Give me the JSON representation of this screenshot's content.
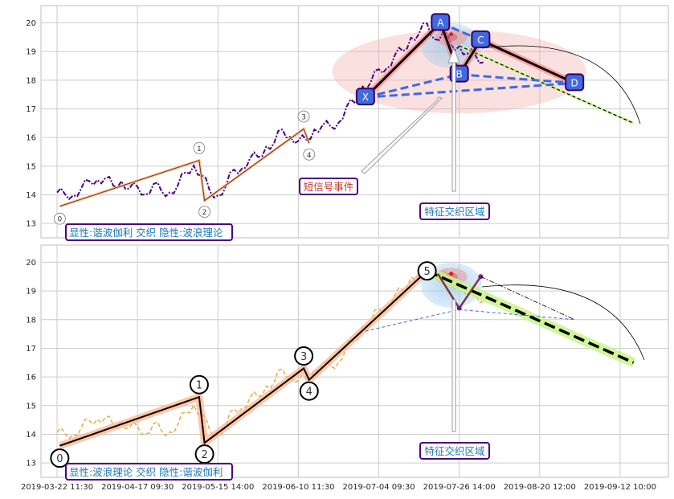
{
  "chart_data": [
    {
      "type": "line",
      "panel": "top",
      "yticks": [
        13,
        14,
        15,
        16,
        17,
        18,
        19,
        20
      ],
      "ylim": [
        12.5,
        20.6
      ],
      "grid": true,
      "series": [
        {
          "color": "#4b0082",
          "style": "dash-dot",
          "x": [
            0,
            3,
            6,
            9,
            12,
            15,
            18,
            21,
            24,
            27,
            30,
            33,
            36,
            39,
            42,
            45,
            48,
            51,
            54,
            57,
            60,
            63,
            66,
            69,
            72,
            75,
            78,
            81,
            84,
            87,
            90,
            93,
            96,
            99,
            102,
            105,
            108,
            111,
            114,
            117,
            120,
            123,
            126,
            129,
            132,
            135,
            138,
            141,
            144,
            147,
            150,
            153,
            156,
            159
          ],
          "y": [
            14.0,
            14.1,
            13.9,
            14.3,
            14.4,
            14.6,
            14.5,
            14.4,
            14.4,
            14.3,
            14.2,
            14.1,
            14.3,
            14.2,
            14.0,
            14.4,
            14.7,
            15.1,
            14.6,
            14.2,
            13.9,
            14.4,
            14.8,
            15.0,
            15.2,
            15.4,
            15.6,
            15.9,
            16.2,
            16.1,
            15.8,
            16.0,
            16.2,
            16.5,
            16.3,
            16.6,
            17.0,
            17.3,
            17.7,
            18.0,
            18.3,
            18.5,
            18.8,
            19.1,
            19.4,
            19.7,
            19.9,
            19.5,
            19.6,
            19.3,
            19.1,
            19.0,
            18.8,
            18.7
          ]
        }
      ],
      "patterns": [
        {
          "name": "elliott-wave",
          "color": "#ffb38a",
          "points": [
            {
              "x": 1,
              "y": 13.6,
              "label": "0"
            },
            {
              "x": 53,
              "y": 15.2,
              "label": "1"
            },
            {
              "x": 55,
              "y": 13.8,
              "label": "2"
            },
            {
              "x": 92,
              "y": 16.3,
              "label": "3"
            },
            {
              "x": 94,
              "y": 15.8,
              "label": "4"
            }
          ]
        },
        {
          "name": "harmonic",
          "color": "#4169e1",
          "points": [
            {
              "x": 115,
              "y": 17.4,
              "label": "X"
            },
            {
              "x": 143,
              "y": 20.0,
              "label": "A"
            },
            {
              "x": 150,
              "y": 18.2,
              "label": "B"
            },
            {
              "x": 158,
              "y": 19.4,
              "label": "C"
            },
            {
              "x": 193,
              "y": 17.9,
              "label": "D"
            }
          ]
        }
      ],
      "forecast": {
        "x": [
          150,
          215
        ],
        "y": [
          19.2,
          16.5
        ]
      },
      "annotations": [
        "短信号事件",
        "特征交织区域"
      ],
      "legend_text": "显性:谐波伽利 交织 隐性:波浪理论"
    },
    {
      "type": "line",
      "panel": "bottom",
      "yticks": [
        13,
        14,
        15,
        16,
        17,
        18,
        19,
        20
      ],
      "ylim": [
        12.5,
        20.6
      ],
      "grid": true,
      "series": [
        {
          "color": "#e8a830",
          "style": "dashed",
          "x": [
            0,
            3,
            6,
            9,
            12,
            15,
            18,
            21,
            24,
            27,
            30,
            33,
            36,
            39,
            42,
            45,
            48,
            51,
            54,
            57,
            60,
            63,
            66,
            69,
            72,
            75,
            78,
            81,
            84,
            87,
            90,
            93,
            96,
            99,
            102,
            105,
            108,
            111,
            114,
            117,
            120,
            123,
            126,
            129,
            132,
            135,
            138,
            141,
            144,
            147,
            150,
            153,
            156,
            159
          ],
          "y": [
            14.0,
            14.1,
            13.9,
            14.3,
            14.4,
            14.6,
            14.5,
            14.4,
            14.4,
            14.3,
            14.2,
            14.1,
            14.3,
            14.2,
            14.0,
            14.4,
            14.7,
            15.1,
            14.6,
            14.2,
            13.9,
            14.4,
            14.8,
            15.0,
            15.2,
            15.4,
            15.6,
            15.9,
            16.2,
            16.1,
            15.8,
            16.0,
            16.2,
            16.5,
            16.3,
            16.6,
            17.0,
            17.3,
            17.7,
            18.0,
            18.3,
            18.5,
            18.8,
            19.1,
            19.4,
            19.7,
            19.9,
            19.5,
            19.6,
            19.3,
            19.1,
            19.0,
            18.8,
            18.7
          ]
        }
      ],
      "patterns": [
        {
          "name": "elliott-wave",
          "color": "#ffb38a",
          "points": [
            {
              "x": 1,
              "y": 13.6,
              "label": "0"
            },
            {
              "x": 53,
              "y": 15.3,
              "label": "1"
            },
            {
              "x": 55,
              "y": 13.7,
              "label": "2"
            },
            {
              "x": 92,
              "y": 16.3,
              "label": "3"
            },
            {
              "x": 94,
              "y": 15.9,
              "label": "4"
            },
            {
              "x": 138,
              "y": 19.7,
              "label": "5"
            }
          ]
        }
      ],
      "forecast": {
        "x": [
          138,
          215
        ],
        "y": [
          19.7,
          16.5
        ]
      },
      "annotations": [
        "特征交织区域"
      ],
      "legend_text": "显性:波浪理论 交织 隐性:谐波伽利"
    }
  ],
  "x_axis": {
    "tick_labels": [
      "2019-03-22 11:30",
      "2019-04-17 09:30",
      "2019-05-15 14:00",
      "2019-06-10 11:30",
      "2019-07-04 09:30",
      "2019-07-26 14:00",
      "2019-08-20 12:00",
      "2019-09-12 10:00"
    ]
  },
  "colors": {
    "grid": "#cccccc",
    "box_border": "#4b0082",
    "box_text_blue": "#1f77b4",
    "box_text_red": "#c0392b",
    "harmonic_marker": "#4169e1",
    "forecast_fill": "#c8f58a",
    "zone_red": "#f4a6a6",
    "zone_blue": "#9fc9ee"
  }
}
